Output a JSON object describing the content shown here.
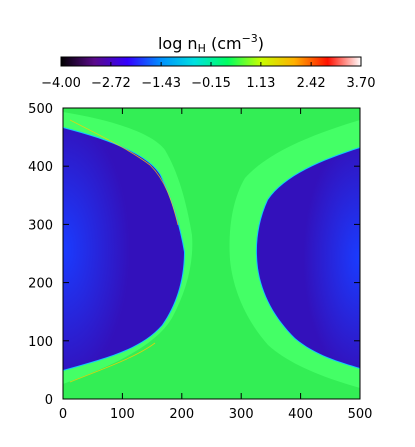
{
  "chart_data": {
    "type": "heatmap",
    "colorbar": {
      "title_prefix": "log n",
      "title_sub": "H",
      "title_unit_open": " (cm",
      "title_unit_sup": "−3",
      "title_unit_close": ")",
      "min": -4.0,
      "max": 3.7,
      "tick_labels": [
        "−4.00",
        "−2.72",
        "−1.43",
        "−0.15",
        "1.13",
        "2.42",
        "3.70"
      ],
      "tick_values": [
        -4.0,
        -2.72,
        -1.43,
        -0.15,
        1.13,
        2.42,
        3.7
      ],
      "colormap": [
        "#000000",
        "#5a0a8a",
        "#3300ff",
        "#0090ff",
        "#00e0e0",
        "#00ff60",
        "#c8ff00",
        "#ffb000",
        "#ff1000",
        "#ffffff"
      ]
    },
    "x_axis": {
      "range": [
        0,
        500
      ],
      "ticks": [
        0,
        100,
        200,
        300,
        400,
        500
      ],
      "tick_labels": [
        "0",
        "100",
        "200",
        "300",
        "400",
        "500"
      ]
    },
    "y_axis": {
      "range": [
        0,
        500
      ],
      "ticks": [
        0,
        100,
        200,
        300,
        400,
        500
      ],
      "tick_labels": [
        "0",
        "100",
        "200",
        "300",
        "400",
        "500"
      ]
    },
    "regions": {
      "ambient_colour": "#33ee55",
      "void_colour": "#3311bb",
      "void_core_colour": "#1a3cff",
      "rim_colour": "#44ff66",
      "edge_colour": "#10c8ff"
    }
  }
}
